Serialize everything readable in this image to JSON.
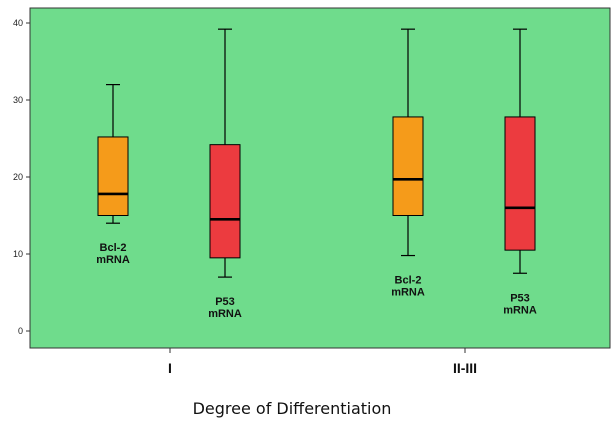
{
  "colors": {
    "plot_bg": "#6fdc8c",
    "page_bg": "#ffffff",
    "series_bcl2": "#f59b1a",
    "series_p53": "#ec3b3f",
    "line": "#000000"
  },
  "chart_data": {
    "type": "boxplot",
    "title": "",
    "xlabel": "Degree of Differentiation",
    "ylabel": "",
    "ylim": [
      -4,
      42
    ],
    "y_ticks": [
      0,
      10,
      20,
      30,
      40
    ],
    "grid": false,
    "categories": [
      "I",
      "II-III"
    ],
    "series": [
      {
        "key": "bcl2",
        "label_lines": [
          "Bcl-2",
          "mRNA"
        ],
        "color": "#f59b1a",
        "boxes": [
          {
            "category": "I",
            "min": 14,
            "q1": 15,
            "median": 17.8,
            "q3": 25.2,
            "max": 32
          },
          {
            "category": "II-III",
            "min": 9.8,
            "q1": 15,
            "median": 19.7,
            "q3": 27.8,
            "max": 39.2
          }
        ]
      },
      {
        "key": "p53",
        "label_lines": [
          "P53",
          "mRNA"
        ],
        "color": "#ec3b3f",
        "boxes": [
          {
            "category": "I",
            "min": 7,
            "q1": 9.5,
            "median": 14.5,
            "q3": 24.2,
            "max": 39.2
          },
          {
            "category": "II-III",
            "min": 7.5,
            "q1": 10.5,
            "median": 16,
            "q3": 27.8,
            "max": 39.2
          }
        ]
      }
    ]
  }
}
